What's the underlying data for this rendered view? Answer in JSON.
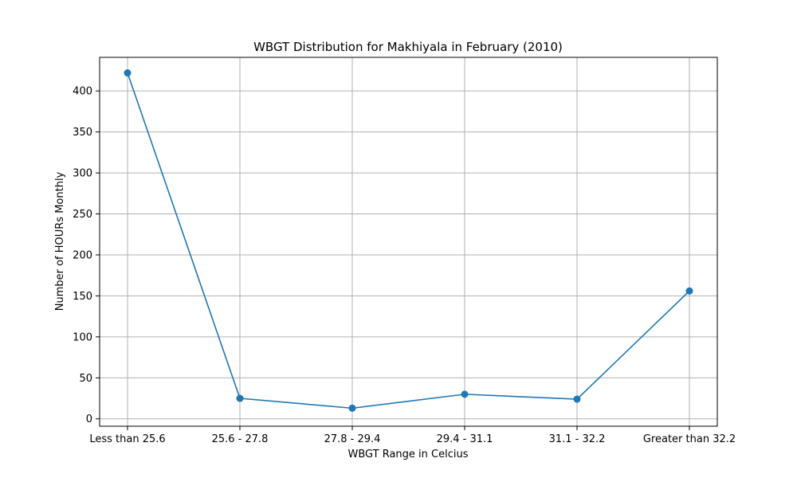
{
  "chart_data": {
    "type": "line",
    "title": "WBGT Distribution for Makhiyala in February (2010)",
    "xlabel": "WBGT Range in Celcius",
    "ylabel": "Number of HOURs Monthly",
    "categories": [
      "Less than 25.6",
      "25.6 - 27.8",
      "27.8 - 29.4",
      "29.4 - 31.1",
      "31.1 - 32.2",
      "Greater than 32.2"
    ],
    "series": [
      {
        "values": [
          422,
          25,
          13,
          30,
          24,
          156
        ]
      }
    ],
    "ylim": [
      -9,
      441
    ],
    "yticks": [
      0,
      50,
      100,
      150,
      200,
      250,
      300,
      350,
      400
    ],
    "grid": true,
    "line_color": "#1f77b4",
    "marker": "circle"
  }
}
